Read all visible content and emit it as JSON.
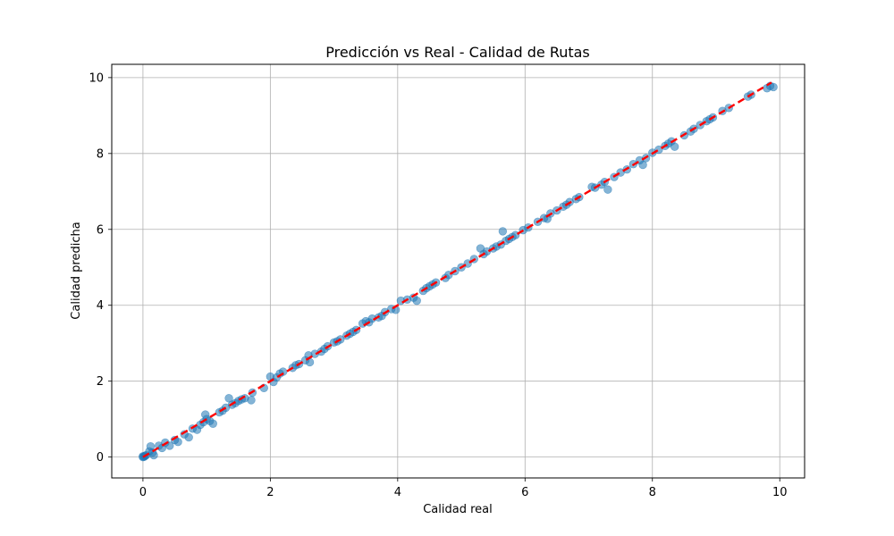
{
  "chart_data": {
    "type": "scatter",
    "title": "Predicción vs Real - Calidad de Rutas",
    "xlabel": "Calidad real",
    "ylabel": "Calidad predicha",
    "xlim": [
      -0.49,
      10.39
    ],
    "ylim": [
      -0.55,
      10.35
    ],
    "xticks": [
      0,
      2,
      4,
      6,
      8,
      10
    ],
    "yticks": [
      0,
      2,
      4,
      6,
      8,
      10
    ],
    "grid": true,
    "point_color": "#1f77b4",
    "line_color": "#ff0000",
    "reference_line": {
      "x": [
        0,
        9.87
      ],
      "y": [
        0,
        9.87
      ],
      "style": "dashed"
    },
    "series": [
      {
        "x": [
          0,
          0,
          0.02,
          0.03,
          0.05,
          0.1,
          0.12,
          0.15,
          0.17,
          0.25,
          0.3,
          0.35,
          0.42,
          0.5,
          0.55,
          0.65,
          0.72,
          0.78,
          0.85,
          0.9,
          0.95,
          0.98,
          1.0,
          1.05,
          1.1,
          1.2,
          1.25,
          1.3,
          1.35,
          1.4,
          1.45,
          1.5,
          1.55,
          1.6,
          1.7,
          1.72,
          1.9,
          2.0,
          2.05,
          2.1,
          2.15,
          2.2,
          2.35,
          2.4,
          2.45,
          2.55,
          2.6,
          2.62,
          2.7,
          2.8,
          2.85,
          2.9,
          3.0,
          3.05,
          3.1,
          3.2,
          3.25,
          3.3,
          3.35,
          3.45,
          3.5,
          3.55,
          3.6,
          3.7,
          3.75,
          3.8,
          3.9,
          3.97,
          4.05,
          4.15,
          4.25,
          4.3,
          4.4,
          4.45,
          4.5,
          4.55,
          4.6,
          4.75,
          4.8,
          4.9,
          5.0,
          5.1,
          5.2,
          5.3,
          5.35,
          5.4,
          5.5,
          5.55,
          5.62,
          5.65,
          5.7,
          5.75,
          5.8,
          5.85,
          5.97,
          6.05,
          6.2,
          6.3,
          6.35,
          6.4,
          6.5,
          6.6,
          6.65,
          6.7,
          6.8,
          6.85,
          7.05,
          7.1,
          7.2,
          7.25,
          7.3,
          7.4,
          7.5,
          7.6,
          7.7,
          7.8,
          7.85,
          7.9,
          8.0,
          8.1,
          8.2,
          8.25,
          8.3,
          8.35,
          8.5,
          8.6,
          8.65,
          8.75,
          8.85,
          8.9,
          8.95,
          9.1,
          9.2,
          9.5,
          9.55,
          9.8,
          9.85,
          9.9
        ],
        "y": [
          0,
          0.02,
          0.01,
          0.03,
          0.05,
          0.15,
          0.28,
          0.12,
          0.05,
          0.3,
          0.24,
          0.38,
          0.3,
          0.45,
          0.4,
          0.6,
          0.52,
          0.75,
          0.72,
          0.85,
          0.92,
          1.12,
          1.0,
          0.95,
          0.88,
          1.18,
          1.22,
          1.3,
          1.55,
          1.38,
          1.42,
          1.48,
          1.52,
          1.55,
          1.5,
          1.7,
          1.82,
          2.12,
          1.98,
          2.1,
          2.2,
          2.25,
          2.35,
          2.42,
          2.45,
          2.55,
          2.68,
          2.5,
          2.72,
          2.78,
          2.85,
          2.92,
          3.02,
          3.05,
          3.1,
          3.2,
          3.25,
          3.3,
          3.35,
          3.52,
          3.58,
          3.55,
          3.65,
          3.68,
          3.72,
          3.82,
          3.9,
          3.88,
          4.12,
          4.15,
          4.2,
          4.12,
          4.38,
          4.45,
          4.5,
          4.55,
          4.6,
          4.72,
          4.8,
          4.9,
          5.0,
          5.1,
          5.22,
          5.5,
          5.35,
          5.42,
          5.5,
          5.55,
          5.6,
          5.95,
          5.7,
          5.75,
          5.8,
          5.85,
          5.98,
          6.05,
          6.2,
          6.3,
          6.28,
          6.42,
          6.5,
          6.6,
          6.65,
          6.72,
          6.8,
          6.85,
          7.12,
          7.1,
          7.18,
          7.25,
          7.05,
          7.38,
          7.5,
          7.58,
          7.72,
          7.82,
          7.7,
          7.88,
          8.02,
          8.1,
          8.2,
          8.26,
          8.32,
          8.18,
          8.48,
          8.58,
          8.65,
          8.75,
          8.85,
          8.9,
          8.95,
          9.12,
          9.2,
          9.5,
          9.55,
          9.72,
          9.78,
          9.75
        ]
      }
    ]
  }
}
